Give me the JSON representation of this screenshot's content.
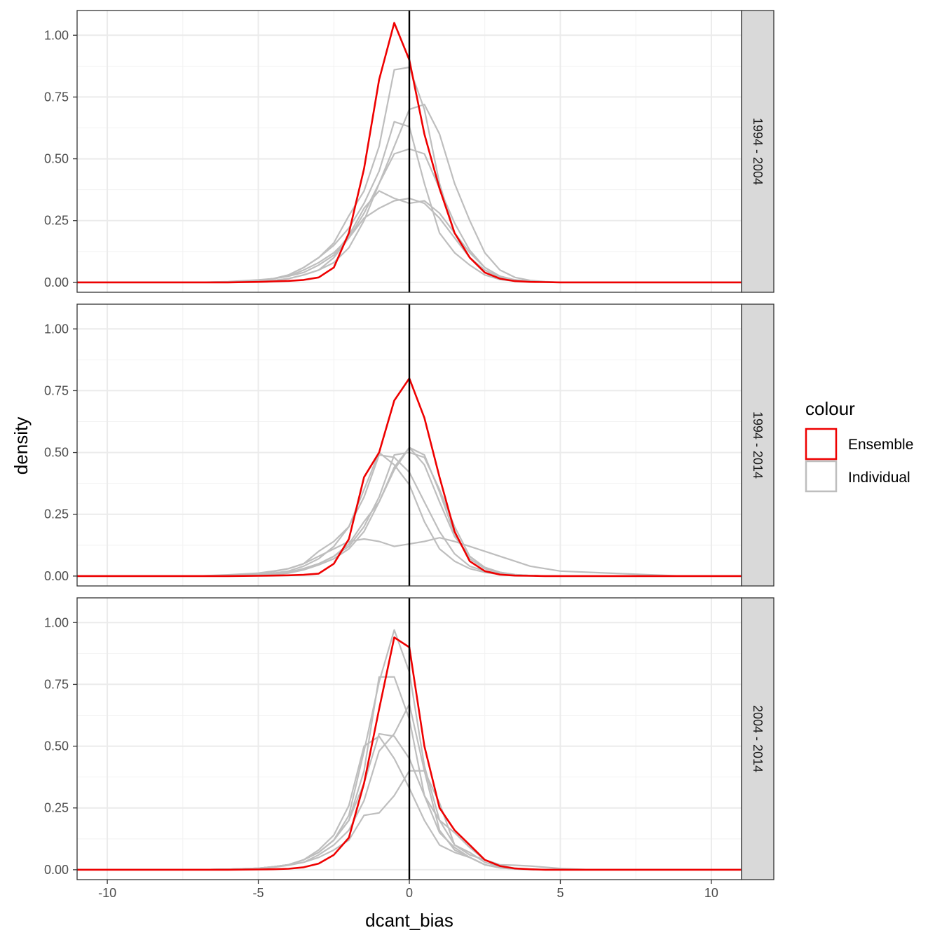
{
  "chart_data": {
    "type": "line",
    "xlabel": "dcant_bias",
    "ylabel": "density",
    "xlim": [
      -11,
      11
    ],
    "ylim": [
      -0.04,
      1.1
    ],
    "x_ticks": [
      -10,
      -5,
      0,
      5,
      10
    ],
    "x_tick_labels": [
      "-10",
      "-5",
      "0",
      "5",
      "10"
    ],
    "y_ticks": [
      0,
      0.25,
      0.5,
      0.75,
      1.0
    ],
    "y_tick_labels": [
      "0.00",
      "0.25",
      "0.50",
      "0.75",
      "1.00"
    ],
    "grid": true,
    "vline_x": 0,
    "legend": {
      "title": "colour",
      "position": "right",
      "entries": [
        {
          "label": "Ensemble",
          "color": "#ee0000"
        },
        {
          "label": "Individual",
          "color": "#bebebe"
        }
      ]
    },
    "x": [
      -11,
      -10,
      -9,
      -8,
      -7,
      -6,
      -5,
      -4.5,
      -4,
      -3.5,
      -3,
      -2.5,
      -2,
      -1.5,
      -1,
      -0.5,
      0,
      0.5,
      1,
      1.5,
      2,
      2.5,
      3,
      3.5,
      4,
      4.5,
      5,
      6,
      7,
      8,
      9,
      10,
      11
    ],
    "panels": [
      {
        "label": "1994 - 2004",
        "series": [
          {
            "name": "Ensemble",
            "values": [
              0,
              0,
              0,
              0,
              0,
              0,
              0.002,
              0.004,
              0.006,
              0.01,
              0.02,
              0.06,
              0.2,
              0.46,
              0.82,
              1.05,
              0.9,
              0.6,
              0.38,
              0.2,
              0.1,
              0.04,
              0.015,
              0.005,
              0.002,
              0.001,
              0,
              0,
              0,
              0,
              0,
              0,
              0
            ]
          },
          {
            "name": "",
            "values": [
              0,
              0,
              0,
              0,
              0,
              0.003,
              0.01,
              0.015,
              0.03,
              0.06,
              0.1,
              0.16,
              0.27,
              0.37,
              0.55,
              0.86,
              0.87,
              0.7,
              0.4,
              0.2,
              0.1,
              0.05,
              0.02,
              0.01,
              0.005,
              0.002,
              0,
              0,
              0,
              0,
              0,
              0,
              0
            ]
          },
          {
            "name": "",
            "values": [
              0,
              0,
              0,
              0,
              0,
              0.002,
              0.008,
              0.015,
              0.025,
              0.05,
              0.08,
              0.12,
              0.18,
              0.28,
              0.4,
              0.55,
              0.7,
              0.72,
              0.6,
              0.4,
              0.25,
              0.12,
              0.05,
              0.02,
              0.008,
              0.003,
              0,
              0,
              0,
              0,
              0,
              0,
              0
            ]
          },
          {
            "name": "",
            "values": [
              0,
              0,
              0,
              0,
              0,
              0.002,
              0.008,
              0.015,
              0.03,
              0.06,
              0.1,
              0.15,
              0.22,
              0.32,
              0.45,
              0.65,
              0.63,
              0.4,
              0.2,
              0.12,
              0.07,
              0.03,
              0.012,
              0.005,
              0.002,
              0.001,
              0,
              0,
              0,
              0,
              0,
              0,
              0
            ]
          },
          {
            "name": "",
            "values": [
              0,
              0,
              0,
              0,
              0,
              0.002,
              0.008,
              0.015,
              0.025,
              0.04,
              0.07,
              0.11,
              0.19,
              0.3,
              0.37,
              0.34,
              0.32,
              0.33,
              0.28,
              0.2,
              0.12,
              0.06,
              0.025,
              0.01,
              0.004,
              0.001,
              0,
              0,
              0,
              0,
              0,
              0,
              0
            ]
          },
          {
            "name": "",
            "values": [
              0,
              0,
              0,
              0,
              0,
              0.001,
              0.004,
              0.008,
              0.015,
              0.03,
              0.05,
              0.1,
              0.18,
              0.26,
              0.3,
              0.33,
              0.34,
              0.32,
              0.26,
              0.18,
              0.1,
              0.05,
              0.02,
              0.008,
              0.003,
              0.001,
              0,
              0,
              0,
              0,
              0,
              0,
              0
            ]
          },
          {
            "name": "",
            "values": [
              0,
              0,
              0,
              0,
              0,
              0.001,
              0.004,
              0.008,
              0.015,
              0.03,
              0.05,
              0.08,
              0.14,
              0.25,
              0.4,
              0.52,
              0.54,
              0.52,
              0.38,
              0.24,
              0.13,
              0.06,
              0.025,
              0.01,
              0.004,
              0.001,
              0,
              0,
              0,
              0,
              0,
              0,
              0
            ]
          }
        ]
      },
      {
        "label": "1994 - 2014",
        "series": [
          {
            "name": "Ensemble",
            "values": [
              0,
              0,
              0,
              0,
              0,
              0,
              0.001,
              0.002,
              0.003,
              0.005,
              0.01,
              0.05,
              0.15,
              0.4,
              0.5,
              0.71,
              0.8,
              0.64,
              0.4,
              0.18,
              0.06,
              0.02,
              0.006,
              0.002,
              0.001,
              0,
              0,
              0,
              0,
              0,
              0,
              0,
              0
            ]
          },
          {
            "name": "",
            "values": [
              0,
              0,
              0,
              0,
              0,
              0.005,
              0.012,
              0.02,
              0.03,
              0.05,
              0.08,
              0.11,
              0.14,
              0.15,
              0.14,
              0.12,
              0.13,
              0.14,
              0.155,
              0.14,
              0.12,
              0.1,
              0.08,
              0.06,
              0.04,
              0.03,
              0.02,
              0.015,
              0.01,
              0.005,
              0,
              0,
              0
            ]
          },
          {
            "name": "",
            "values": [
              0,
              0,
              0,
              0,
              0,
              0.003,
              0.01,
              0.018,
              0.03,
              0.05,
              0.1,
              0.14,
              0.2,
              0.35,
              0.5,
              0.45,
              0.37,
              0.22,
              0.11,
              0.06,
              0.03,
              0.015,
              0.007,
              0.003,
              0.001,
              0,
              0,
              0,
              0,
              0,
              0,
              0,
              0
            ]
          },
          {
            "name": "",
            "values": [
              0,
              0,
              0,
              0,
              0,
              0.002,
              0.006,
              0.012,
              0.02,
              0.04,
              0.07,
              0.12,
              0.2,
              0.32,
              0.49,
              0.48,
              0.42,
              0.3,
              0.18,
              0.09,
              0.04,
              0.02,
              0.01,
              0.004,
              0.002,
              0,
              0,
              0,
              0,
              0,
              0,
              0,
              0
            ]
          },
          {
            "name": "",
            "values": [
              0,
              0,
              0,
              0,
              0,
              0.001,
              0.004,
              0.008,
              0.015,
              0.03,
              0.05,
              0.08,
              0.13,
              0.22,
              0.3,
              0.44,
              0.52,
              0.45,
              0.3,
              0.16,
              0.08,
              0.035,
              0.015,
              0.006,
              0.002,
              0,
              0,
              0,
              0,
              0,
              0,
              0,
              0
            ]
          },
          {
            "name": "",
            "values": [
              0,
              0,
              0,
              0,
              0,
              0.001,
              0.004,
              0.008,
              0.015,
              0.03,
              0.05,
              0.08,
              0.12,
              0.2,
              0.32,
              0.49,
              0.5,
              0.48,
              0.35,
              0.2,
              0.08,
              0.035,
              0.015,
              0.006,
              0.002,
              0,
              0,
              0,
              0,
              0,
              0,
              0,
              0
            ]
          },
          {
            "name": "",
            "values": [
              0,
              0,
              0,
              0,
              0,
              0.001,
              0.003,
              0.006,
              0.012,
              0.025,
              0.045,
              0.07,
              0.11,
              0.18,
              0.3,
              0.43,
              0.52,
              0.49,
              0.34,
              0.17,
              0.07,
              0.03,
              0.012,
              0.005,
              0.002,
              0,
              0,
              0,
              0,
              0,
              0,
              0,
              0
            ]
          }
        ]
      },
      {
        "label": "2004 - 2014",
        "series": [
          {
            "name": "Ensemble",
            "values": [
              0,
              0,
              0,
              0,
              0,
              0,
              0.001,
              0.002,
              0.004,
              0.01,
              0.025,
              0.06,
              0.13,
              0.35,
              0.65,
              0.94,
              0.9,
              0.5,
              0.25,
              0.16,
              0.1,
              0.04,
              0.015,
              0.005,
              0.002,
              0,
              0,
              0,
              0,
              0,
              0,
              0,
              0
            ]
          },
          {
            "name": "",
            "values": [
              0,
              0,
              0,
              0,
              0,
              0.002,
              0.006,
              0.012,
              0.02,
              0.04,
              0.07,
              0.12,
              0.22,
              0.48,
              0.76,
              0.97,
              0.8,
              0.42,
              0.2,
              0.1,
              0.07,
              0.03,
              0.012,
              0.005,
              0.002,
              0,
              0,
              0,
              0,
              0,
              0,
              0,
              0
            ]
          },
          {
            "name": "",
            "values": [
              0,
              0,
              0,
              0,
              0,
              0.002,
              0.006,
              0.012,
              0.02,
              0.04,
              0.07,
              0.12,
              0.2,
              0.4,
              0.78,
              0.78,
              0.61,
              0.3,
              0.15,
              0.09,
              0.05,
              0.02,
              0.008,
              0.003,
              0.001,
              0,
              0,
              0,
              0,
              0,
              0,
              0,
              0
            ]
          },
          {
            "name": "",
            "values": [
              0,
              0,
              0,
              0,
              0,
              0.002,
              0.006,
              0.012,
              0.02,
              0.04,
              0.08,
              0.14,
              0.26,
              0.5,
              0.54,
              0.45,
              0.33,
              0.2,
              0.1,
              0.07,
              0.05,
              0.02,
              0.008,
              0.003,
              0.001,
              0,
              0,
              0,
              0,
              0,
              0,
              0,
              0
            ]
          },
          {
            "name": "",
            "values": [
              0,
              0,
              0,
              0,
              0,
              0.002,
              0.006,
              0.012,
              0.02,
              0.04,
              0.07,
              0.12,
              0.2,
              0.35,
              0.55,
              0.54,
              0.45,
              0.3,
              0.2,
              0.15,
              0.09,
              0.04,
              0.016,
              0.006,
              0.002,
              0,
              0,
              0,
              0,
              0,
              0,
              0,
              0
            ]
          },
          {
            "name": "",
            "values": [
              0,
              0,
              0,
              0,
              0,
              0.002,
              0.006,
              0.012,
              0.02,
              0.03,
              0.05,
              0.08,
              0.12,
              0.22,
              0.23,
              0.3,
              0.4,
              0.4,
              0.27,
              0.1,
              0.06,
              0.04,
              0.02,
              0.018,
              0.015,
              0.01,
              0.005,
              0,
              0,
              0,
              0,
              0,
              0
            ]
          },
          {
            "name": "",
            "values": [
              0,
              0,
              0,
              0,
              0,
              0.002,
              0.005,
              0.01,
              0.018,
              0.03,
              0.06,
              0.1,
              0.16,
              0.28,
              0.48,
              0.55,
              0.67,
              0.4,
              0.16,
              0.08,
              0.05,
              0.02,
              0.008,
              0.003,
              0.001,
              0,
              0,
              0,
              0,
              0,
              0,
              0,
              0
            ]
          }
        ]
      }
    ]
  }
}
